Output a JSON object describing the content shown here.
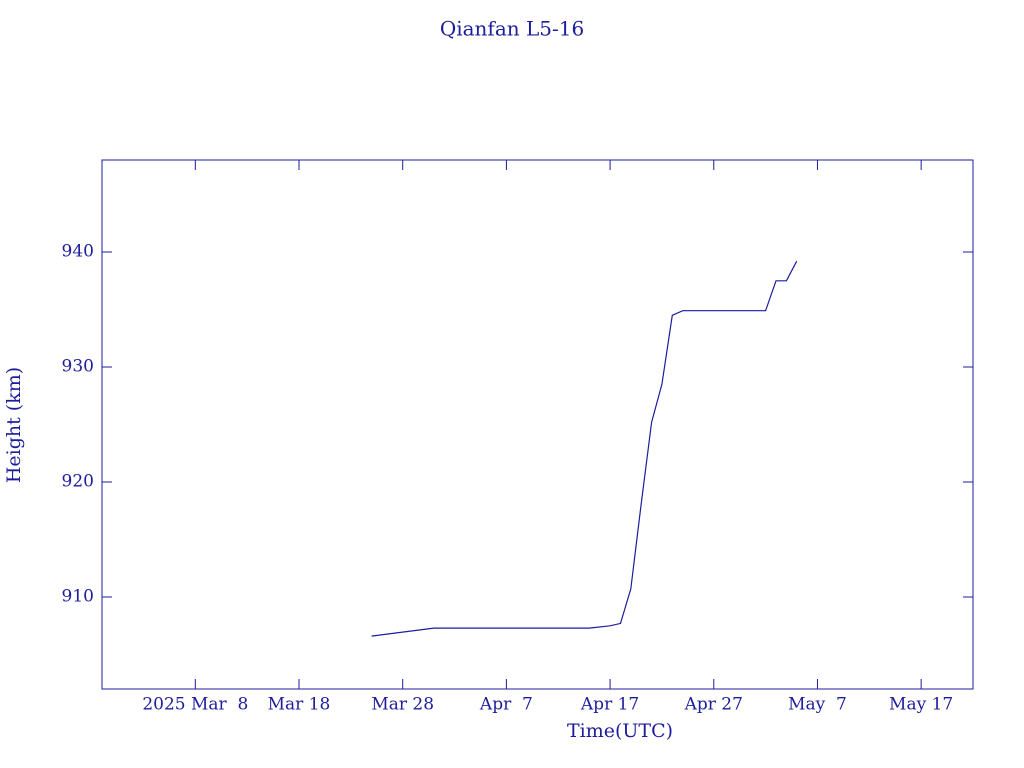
{
  "chart_data": {
    "type": "line",
    "title": "Qianfan L5-16",
    "x_label": "Time(UTC)",
    "y_label": "Height (km)",
    "x": [
      "2025-03-25",
      "2025-03-31",
      "2025-04-15",
      "2025-04-17",
      "2025-04-18",
      "2025-04-19",
      "2025-04-20",
      "2025-04-21",
      "2025-04-22",
      "2025-04-23",
      "2025-04-24",
      "2025-05-02",
      "2025-05-03",
      "2025-05-04",
      "2025-05-05"
    ],
    "series": [
      {
        "name": "Height",
        "color": "#1c1c9c",
        "values": [
          906.6,
          907.3,
          907.3,
          907.5,
          907.7,
          910.7,
          918.1,
          925.2,
          928.5,
          934.5,
          934.9,
          934.9,
          937.5,
          937.5,
          939.2
        ]
      }
    ],
    "xlim": [
      "2025-02-27",
      "2025-05-22"
    ],
    "xticks": [
      {
        "value": "2025-03-08",
        "label": "2025 Mar  8"
      },
      {
        "value": "2025-03-18",
        "label": "Mar 18"
      },
      {
        "value": "2025-03-28",
        "label": "Mar 28"
      },
      {
        "value": "2025-04-07",
        "label": "Apr  7"
      },
      {
        "value": "2025-04-17",
        "label": "Apr 17"
      },
      {
        "value": "2025-04-27",
        "label": "Apr 27"
      },
      {
        "value": "2025-05-07",
        "label": "May  7"
      },
      {
        "value": "2025-05-17",
        "label": "May 17"
      }
    ],
    "ylim": [
      902,
      948
    ],
    "yticks": [
      910,
      920,
      930,
      940
    ]
  }
}
